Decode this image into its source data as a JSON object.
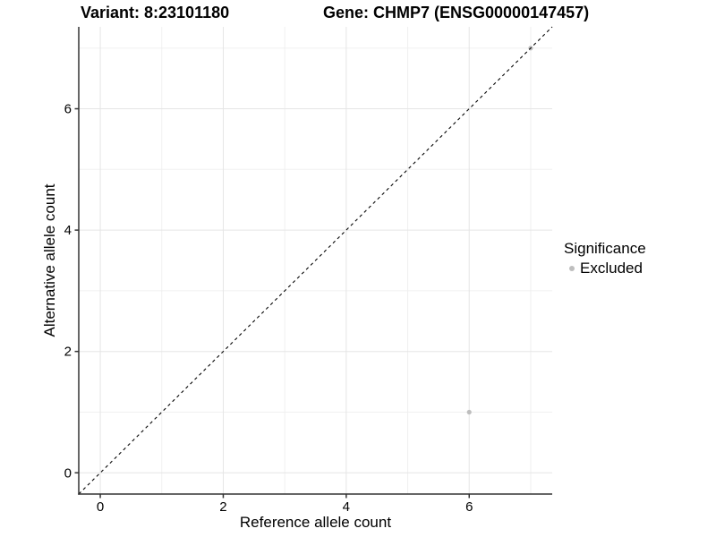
{
  "chart_data": {
    "type": "scatter",
    "title_left": "Variant: 8:23101180",
    "title_right": "Gene: CHMP7 (ENSG00000147457)",
    "xlabel": "Reference allele count",
    "ylabel": "Alternative allele count",
    "xlim": [
      -0.35,
      7.35
    ],
    "ylim": [
      -0.35,
      7.35
    ],
    "x_major_ticks": [
      0,
      2,
      4,
      6
    ],
    "x_minor_ticks": [
      1,
      3,
      5,
      7
    ],
    "y_major_ticks": [
      0,
      2,
      4,
      6
    ],
    "y_minor_ticks": [
      1,
      3,
      5,
      7
    ],
    "grid": "major+minor",
    "reference_line": {
      "slope": 1,
      "intercept": 0,
      "style": "dashed",
      "color": "#000000"
    },
    "series": [
      {
        "name": "Excluded",
        "color": "#bebebe",
        "points": [
          {
            "x": 6,
            "y": 1
          },
          {
            "x": 7,
            "y": 7
          }
        ]
      }
    ],
    "legend": {
      "title": "Significance",
      "position": "right",
      "items": [
        {
          "label": "Excluded",
          "color": "#bebebe",
          "marker": "circle"
        }
      ]
    },
    "colors": {
      "background": "#ffffff",
      "axis_line": "#333333",
      "tick_text": "#000000",
      "grid_major": "#e5e5e5",
      "grid_minor": "#f0f0f0"
    }
  }
}
